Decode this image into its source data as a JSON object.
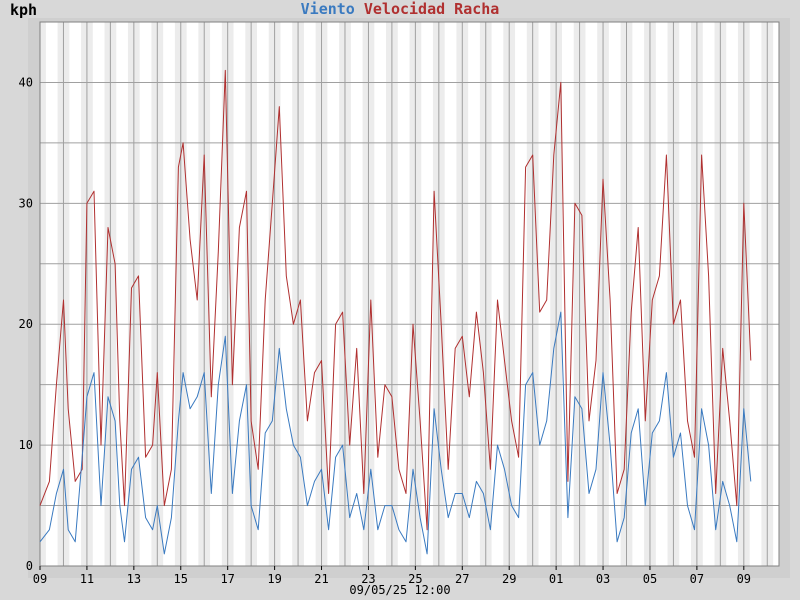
{
  "chart_data": {
    "type": "line",
    "unit_label": "kph",
    "title_parts": [
      {
        "text": "Viento",
        "color": "#3a7ac0"
      },
      {
        "text": "Velocidad",
        "color": "#b03030"
      },
      {
        "text": "Racha",
        "color": "#b03030"
      }
    ],
    "xlabel": "09/05/25 12:00",
    "x_start_day_label": "09",
    "x_range_days": [
      0,
      31.5
    ],
    "ylim": [
      0,
      45
    ],
    "y_major_ticks": [
      0,
      10,
      20,
      30,
      40
    ],
    "y_minor_gridlines": [
      5,
      15,
      25,
      35
    ],
    "x_ticks": [
      {
        "day": 0,
        "label": "09"
      },
      {
        "day": 2,
        "label": "11"
      },
      {
        "day": 4,
        "label": "13"
      },
      {
        "day": 6,
        "label": "15"
      },
      {
        "day": 8,
        "label": "17"
      },
      {
        "day": 10,
        "label": "19"
      },
      {
        "day": 12,
        "label": "21"
      },
      {
        "day": 14,
        "label": "23"
      },
      {
        "day": 16,
        "label": "25"
      },
      {
        "day": 18,
        "label": "27"
      },
      {
        "day": 20,
        "label": "29"
      },
      {
        "day": 22,
        "label": "01"
      },
      {
        "day": 24,
        "label": "03"
      },
      {
        "day": 26,
        "label": "05"
      },
      {
        "day": 28,
        "label": "07"
      },
      {
        "day": 30,
        "label": "09"
      }
    ],
    "grid": true,
    "colors": {
      "wind": "#3a7ac0",
      "gust": "#b03030",
      "background": "#ffffff",
      "outer": "#d8d8d8",
      "night_band": "#ececec",
      "grid": "#a0a0a0"
    },
    "series": [
      {
        "name": "Racha",
        "color": "#b03030",
        "x": [
          0.0,
          0.4,
          0.7,
          1.0,
          1.2,
          1.5,
          1.8,
          2.0,
          2.3,
          2.6,
          2.9,
          3.2,
          3.4,
          3.6,
          3.9,
          4.2,
          4.5,
          4.8,
          5.0,
          5.3,
          5.6,
          5.9,
          6.1,
          6.4,
          6.7,
          7.0,
          7.3,
          7.6,
          7.9,
          8.2,
          8.5,
          8.8,
          9.0,
          9.3,
          9.6,
          9.9,
          10.2,
          10.5,
          10.8,
          11.1,
          11.4,
          11.7,
          12.0,
          12.3,
          12.6,
          12.9,
          13.2,
          13.5,
          13.8,
          14.1,
          14.4,
          14.7,
          15.0,
          15.3,
          15.6,
          15.9,
          16.2,
          16.5,
          16.8,
          17.1,
          17.4,
          17.7,
          18.0,
          18.3,
          18.6,
          18.9,
          19.2,
          19.5,
          19.8,
          20.1,
          20.4,
          20.7,
          21.0,
          21.3,
          21.6,
          21.9,
          22.2,
          22.5,
          22.8,
          23.1,
          23.4,
          23.7,
          24.0,
          24.3,
          24.6,
          24.9,
          25.2,
          25.5,
          25.8,
          26.1,
          26.4,
          26.7,
          27.0,
          27.3,
          27.6,
          27.9,
          28.2,
          28.5,
          28.8,
          29.1,
          29.4,
          29.7,
          30.0,
          30.3
        ],
        "values": [
          5,
          7,
          15,
          22,
          13,
          7,
          8,
          30,
          31,
          10,
          28,
          25,
          12,
          5,
          23,
          24,
          9,
          10,
          16,
          5,
          8,
          33,
          35,
          27,
          22,
          34,
          14,
          26,
          41,
          15,
          28,
          31,
          12,
          8,
          22,
          30,
          38,
          24,
          20,
          22,
          12,
          16,
          17,
          6,
          20,
          21,
          10,
          18,
          6,
          22,
          9,
          15,
          14,
          8,
          6,
          20,
          12,
          3,
          31,
          20,
          8,
          18,
          19,
          14,
          21,
          16,
          8,
          22,
          17,
          12,
          9,
          33,
          34,
          21,
          22,
          34,
          40,
          7,
          30,
          29,
          12,
          17,
          32,
          22,
          6,
          8,
          21,
          28,
          12,
          22,
          24,
          34,
          20,
          22,
          12,
          9,
          34,
          24,
          6,
          18,
          12,
          5,
          30,
          17
        ]
      },
      {
        "name": "Velocidad",
        "color": "#3a7ac0",
        "x": [
          0.0,
          0.4,
          0.7,
          1.0,
          1.2,
          1.5,
          1.8,
          2.0,
          2.3,
          2.6,
          2.9,
          3.2,
          3.4,
          3.6,
          3.9,
          4.2,
          4.5,
          4.8,
          5.0,
          5.3,
          5.6,
          5.9,
          6.1,
          6.4,
          6.7,
          7.0,
          7.3,
          7.6,
          7.9,
          8.2,
          8.5,
          8.8,
          9.0,
          9.3,
          9.6,
          9.9,
          10.2,
          10.5,
          10.8,
          11.1,
          11.4,
          11.7,
          12.0,
          12.3,
          12.6,
          12.9,
          13.2,
          13.5,
          13.8,
          14.1,
          14.4,
          14.7,
          15.0,
          15.3,
          15.6,
          15.9,
          16.2,
          16.5,
          16.8,
          17.1,
          17.4,
          17.7,
          18.0,
          18.3,
          18.6,
          18.9,
          19.2,
          19.5,
          19.8,
          20.1,
          20.4,
          20.7,
          21.0,
          21.3,
          21.6,
          21.9,
          22.2,
          22.5,
          22.8,
          23.1,
          23.4,
          23.7,
          24.0,
          24.3,
          24.6,
          24.9,
          25.2,
          25.5,
          25.8,
          26.1,
          26.4,
          26.7,
          27.0,
          27.3,
          27.6,
          27.9,
          28.2,
          28.5,
          28.8,
          29.1,
          29.4,
          29.7,
          30.0,
          30.3
        ],
        "values": [
          2,
          3,
          6,
          8,
          3,
          2,
          9,
          14,
          16,
          5,
          14,
          12,
          5,
          2,
          8,
          9,
          4,
          3,
          5,
          1,
          4,
          12,
          16,
          13,
          14,
          16,
          6,
          15,
          19,
          6,
          12,
          15,
          5,
          3,
          11,
          12,
          18,
          13,
          10,
          9,
          5,
          7,
          8,
          3,
          9,
          10,
          4,
          6,
          3,
          8,
          3,
          5,
          5,
          3,
          2,
          8,
          4,
          1,
          13,
          8,
          4,
          6,
          6,
          4,
          7,
          6,
          3,
          10,
          8,
          5,
          4,
          15,
          16,
          10,
          12,
          18,
          21,
          4,
          14,
          13,
          6,
          8,
          16,
          10,
          2,
          4,
          11,
          13,
          5,
          11,
          12,
          16,
          9,
          11,
          5,
          3,
          13,
          10,
          3,
          7,
          5,
          2,
          13,
          7
        ]
      }
    ]
  }
}
